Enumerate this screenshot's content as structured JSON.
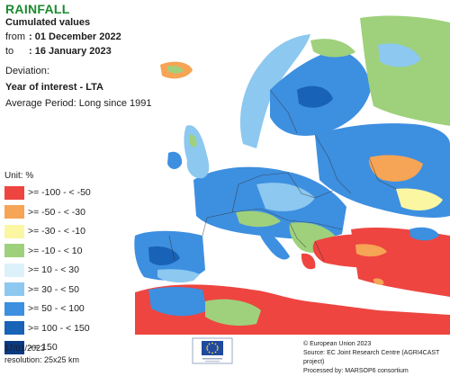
{
  "header": {
    "title": "RAINFALL",
    "subtitle": "Cumulated values",
    "from_label": "from",
    "from_value": ": 01 December 2022",
    "to_label": "to",
    "to_value": ": 16 January 2023",
    "deviation_label": "Deviation:",
    "comparison": "Year of interest - LTA",
    "average_period": "Average Period: Long since 1991"
  },
  "legend": {
    "unit": "Unit: %",
    "items": [
      {
        "label": ">= -100 - < -50",
        "color": "#ee4540"
      },
      {
        "label": ">= -50 - < -30",
        "color": "#f6a455"
      },
      {
        "label": ">= -30 - < -10",
        "color": "#fbf6a2"
      },
      {
        "label": ">= -10 - < 10",
        "color": "#9fd17c"
      },
      {
        "label": ">= 10 - < 30",
        "color": "#dcf1fa"
      },
      {
        "label": ">= 30 - < 50",
        "color": "#8cc8ef"
      },
      {
        "label": ">= 50 - < 100",
        "color": "#3d8fe0"
      },
      {
        "label": ">= 100 - < 150",
        "color": "#1862b8"
      },
      {
        "label": ">= 150",
        "color": "#0a3a82"
      }
    ]
  },
  "footer": {
    "date": "17/01/2023",
    "resolution": "resolution: 25x25 km",
    "copyright": "© European Union 2023",
    "source": "Source: EC Joint Research Centre (AGRI4CAST project)",
    "processed": "Processed by: MARSOP6 consortium"
  },
  "map": {
    "sea_color": "#ffffff",
    "border_color": "#333333"
  }
}
